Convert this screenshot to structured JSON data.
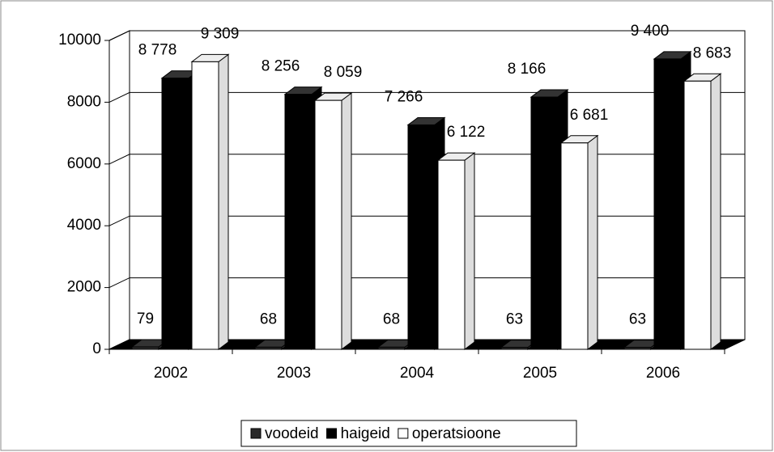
{
  "chart_data": {
    "type": "bar3d",
    "categories": [
      "2002",
      "2003",
      "2004",
      "2005",
      "2006"
    ],
    "series": [
      {
        "name": "voodeid",
        "color": "#2a2a2a",
        "values": [
          79,
          68,
          68,
          63,
          63
        ]
      },
      {
        "name": "haigeid",
        "color": "#000000",
        "values": [
          8778,
          8256,
          7266,
          8166,
          9400
        ],
        "value_labels": [
          "8 778",
          "8 256",
          "7 266",
          "8 166",
          "9 400"
        ]
      },
      {
        "name": "operatsioone",
        "color": "#ffffff",
        "values": [
          9309,
          8059,
          6122,
          6681,
          8683
        ],
        "value_labels": [
          "9 309",
          "8 059",
          "6 122",
          "6 681",
          "8 683"
        ]
      }
    ],
    "ylim": [
      0,
      10000
    ],
    "yticks": [
      0,
      2000,
      4000,
      6000,
      8000,
      10000
    ],
    "grid": true,
    "legend": "bottom"
  }
}
